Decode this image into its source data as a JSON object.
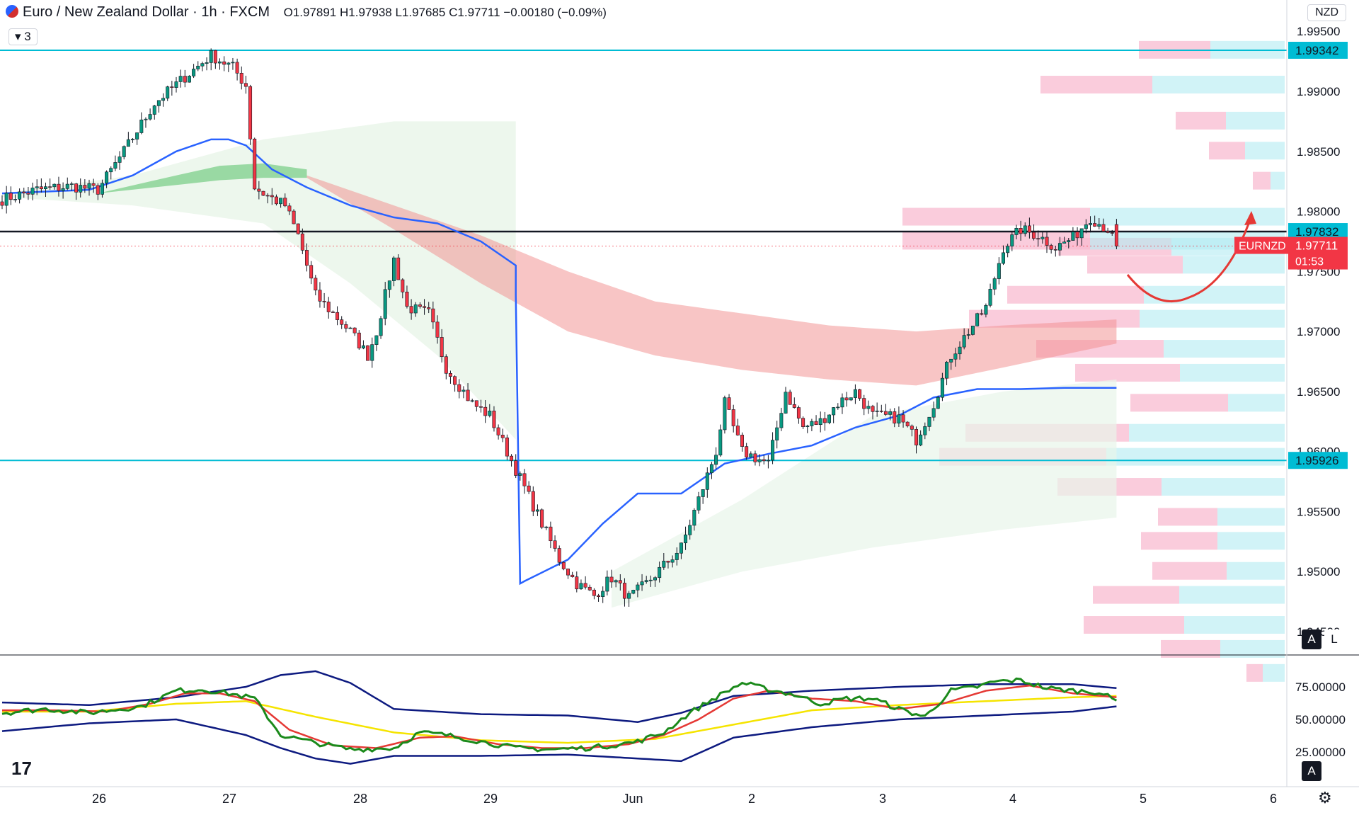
{
  "header": {
    "symbol_title": "Euro / New Zealand Dollar · 1h · FXCM",
    "open": "O1.97891",
    "high": "H1.97938",
    "low": "L1.97685",
    "close": "C1.97711",
    "change": "−0.00180 (−0.09%)",
    "indicator_count": "3",
    "currency": "NZD"
  },
  "price_axis": {
    "ticks": [
      "1.99500",
      "1.99000",
      "1.98500",
      "1.98000",
      "1.97500",
      "1.97000",
      "1.96500",
      "1.96000",
      "1.95500",
      "1.95000",
      "1.94500"
    ],
    "labels": [
      {
        "value": 1.99342,
        "text": "1.99342",
        "color": "#00bcd4"
      },
      {
        "value": 1.97832,
        "text": "1.97832",
        "color": "#00bcd4"
      },
      {
        "value": 1.95926,
        "text": "1.95926",
        "color": "#00bcd4"
      }
    ],
    "current": {
      "symbol": "EURNZD",
      "price": "1.97711",
      "countdown": "01:53",
      "color": "#f23645"
    }
  },
  "time_axis": {
    "ticks": [
      "26",
      "27",
      "28",
      "29",
      "Jun",
      "2",
      "3",
      "4",
      "5",
      "6"
    ]
  },
  "osc_axis": {
    "ticks": [
      "75.00000",
      "50.00000",
      "25.00000"
    ]
  },
  "scale_buttons": {
    "auto": "A",
    "log": "L"
  },
  "colors": {
    "up": "#089981",
    "down": "#f23645",
    "ema": "#2962ff",
    "level_line": "#00bcd4",
    "key_line": "#131722",
    "ribbon_red": "#f28b8b",
    "ribbon_green": "#7ccf8a",
    "vp_pink": "#f8bbd0",
    "vp_cyan": "#b2ebf2",
    "osc_main": "#1b8a1b",
    "osc_signal": "#e53935",
    "osc_mid": "#f5e400",
    "osc_band": "#0d1a80",
    "arrow": "#e53935"
  },
  "chart_data": {
    "type": "candlestick",
    "symbol": "EURNZD",
    "timeframe": "1h",
    "ylim": [
      1.942,
      1.999
    ],
    "x_dates": [
      "26",
      "27",
      "28",
      "29",
      "Jun",
      "2",
      "3",
      "4",
      "5",
      "6"
    ],
    "levels": [
      1.99342,
      1.97832,
      1.95926
    ],
    "last": {
      "open": 1.97891,
      "high": 1.97938,
      "low": 1.97685,
      "close": 1.97711
    },
    "waypoints": [
      [
        0,
        1.981
      ],
      [
        8,
        1.9818
      ],
      [
        16,
        1.9821
      ],
      [
        22,
        1.9818
      ],
      [
        28,
        1.985
      ],
      [
        35,
        1.989
      ],
      [
        42,
        1.9912
      ],
      [
        48,
        1.993
      ],
      [
        53,
        1.992
      ],
      [
        56,
        1.9905
      ],
      [
        58,
        1.982
      ],
      [
        60,
        1.9815
      ],
      [
        65,
        1.9805
      ],
      [
        68,
        1.978
      ],
      [
        72,
        1.973
      ],
      [
        76,
        1.9715
      ],
      [
        80,
        1.97
      ],
      [
        84,
        1.968
      ],
      [
        86,
        1.97
      ],
      [
        90,
        1.976
      ],
      [
        93,
        1.972
      ],
      [
        98,
        1.9715
      ],
      [
        102,
        1.967
      ],
      [
        108,
        1.964
      ],
      [
        112,
        1.963
      ],
      [
        116,
        1.96
      ],
      [
        120,
        1.957
      ],
      [
        124,
        1.954
      ],
      [
        128,
        1.951
      ],
      [
        132,
        1.949
      ],
      [
        136,
        1.948
      ],
      [
        140,
        1.9495
      ],
      [
        144,
        1.9478
      ],
      [
        148,
        1.949
      ],
      [
        152,
        1.9505
      ],
      [
        156,
        1.952
      ],
      [
        160,
        1.956
      ],
      [
        164,
        1.96
      ],
      [
        166,
        1.964
      ],
      [
        170,
        1.96
      ],
      [
        176,
        1.959
      ],
      [
        180,
        1.965
      ],
      [
        184,
        1.962
      ],
      [
        188,
        1.9625
      ],
      [
        192,
        1.964
      ],
      [
        196,
        1.965
      ],
      [
        200,
        1.963
      ],
      [
        206,
        1.9628
      ],
      [
        210,
        1.961
      ],
      [
        214,
        1.964
      ],
      [
        218,
        1.968
      ],
      [
        222,
        1.97
      ],
      [
        226,
        1.972
      ],
      [
        230,
        1.977
      ],
      [
        234,
        1.9785
      ],
      [
        238,
        1.978
      ],
      [
        242,
        1.977
      ],
      [
        246,
        1.9778
      ],
      [
        250,
        1.9795
      ],
      [
        254,
        1.9785
      ],
      [
        256,
        1.9771
      ]
    ],
    "oscillator": {
      "range": [
        15,
        95
      ],
      "main_waypoints": [
        [
          0,
          55
        ],
        [
          10,
          58
        ],
        [
          20,
          55
        ],
        [
          32,
          60
        ],
        [
          40,
          72
        ],
        [
          46,
          73
        ],
        [
          52,
          70
        ],
        [
          58,
          66
        ],
        [
          64,
          38
        ],
        [
          72,
          32
        ],
        [
          80,
          27
        ],
        [
          90,
          28
        ],
        [
          96,
          40
        ],
        [
          102,
          38
        ],
        [
          110,
          33
        ],
        [
          118,
          28
        ],
        [
          126,
          27
        ],
        [
          134,
          28
        ],
        [
          140,
          30
        ],
        [
          146,
          33
        ],
        [
          152,
          40
        ],
        [
          158,
          55
        ],
        [
          164,
          67
        ],
        [
          170,
          78
        ],
        [
          176,
          73
        ],
        [
          182,
          69
        ],
        [
          188,
          62
        ],
        [
          194,
          66
        ],
        [
          200,
          66
        ],
        [
          206,
          58
        ],
        [
          212,
          52
        ],
        [
          218,
          72
        ],
        [
          224,
          75
        ],
        [
          228,
          79
        ],
        [
          234,
          80
        ],
        [
          240,
          74
        ],
        [
          246,
          72
        ],
        [
          252,
          71
        ],
        [
          256,
          64
        ]
      ],
      "signal_waypoints": [
        [
          0,
          57
        ],
        [
          12,
          57
        ],
        [
          24,
          56
        ],
        [
          34,
          62
        ],
        [
          42,
          70
        ],
        [
          50,
          70
        ],
        [
          58,
          64
        ],
        [
          66,
          42
        ],
        [
          76,
          30
        ],
        [
          86,
          28
        ],
        [
          96,
          36
        ],
        [
          104,
          37
        ],
        [
          114,
          31
        ],
        [
          124,
          28
        ],
        [
          134,
          28
        ],
        [
          144,
          31
        ],
        [
          152,
          38
        ],
        [
          160,
          50
        ],
        [
          168,
          66
        ],
        [
          176,
          72
        ],
        [
          186,
          66
        ],
        [
          196,
          64
        ],
        [
          206,
          58
        ],
        [
          216,
          62
        ],
        [
          226,
          72
        ],
        [
          236,
          76
        ],
        [
          246,
          70
        ],
        [
          256,
          67
        ]
      ],
      "mid_waypoints": [
        [
          0,
          56
        ],
        [
          20,
          56
        ],
        [
          40,
          62
        ],
        [
          56,
          64
        ],
        [
          72,
          52
        ],
        [
          90,
          40
        ],
        [
          110,
          34
        ],
        [
          130,
          32
        ],
        [
          150,
          35
        ],
        [
          168,
          46
        ],
        [
          186,
          57
        ],
        [
          206,
          61
        ],
        [
          226,
          64
        ],
        [
          246,
          67
        ],
        [
          256,
          68
        ]
      ],
      "upper_waypoints": [
        [
          0,
          63
        ],
        [
          20,
          61
        ],
        [
          40,
          67
        ],
        [
          56,
          75
        ],
        [
          64,
          84
        ],
        [
          72,
          87
        ],
        [
          80,
          78
        ],
        [
          90,
          58
        ],
        [
          110,
          54
        ],
        [
          130,
          53
        ],
        [
          146,
          48
        ],
        [
          156,
          55
        ],
        [
          168,
          68
        ],
        [
          186,
          72
        ],
        [
          206,
          75
        ],
        [
          226,
          77
        ],
        [
          246,
          77
        ],
        [
          256,
          74
        ]
      ],
      "lower_waypoints": [
        [
          0,
          41
        ],
        [
          20,
          47
        ],
        [
          40,
          50
        ],
        [
          56,
          38
        ],
        [
          64,
          28
        ],
        [
          72,
          20
        ],
        [
          80,
          16
        ],
        [
          90,
          22
        ],
        [
          110,
          22
        ],
        [
          130,
          23
        ],
        [
          146,
          20
        ],
        [
          156,
          18
        ],
        [
          168,
          36
        ],
        [
          186,
          44
        ],
        [
          206,
          50
        ],
        [
          226,
          53
        ],
        [
          246,
          56
        ],
        [
          256,
          60
        ]
      ]
    }
  }
}
